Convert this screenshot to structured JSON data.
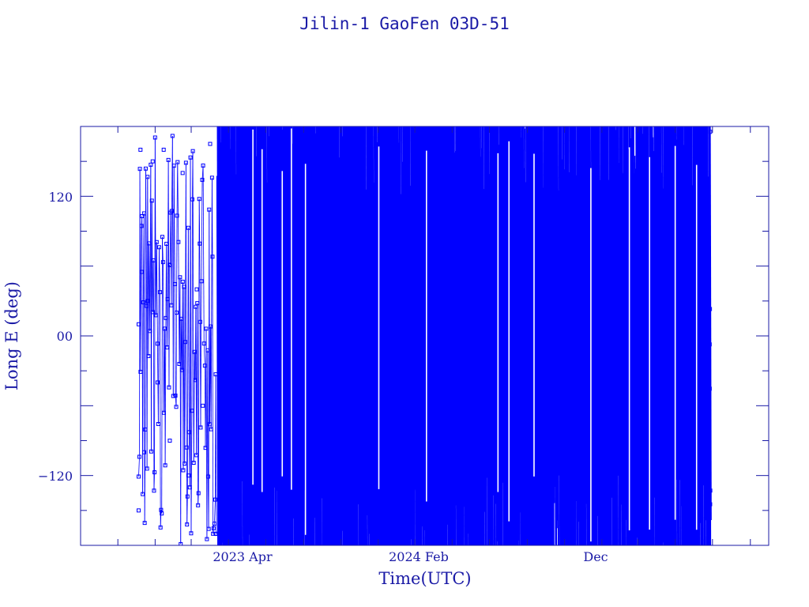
{
  "chart_data": {
    "type": "scatter",
    "title": "Jilin-1 GaoFen 03D-51",
    "xlabel": "Time(UTC)",
    "ylabel": "Long E (deg)",
    "x_ticks": [
      "2023 Apr",
      "2024 Feb",
      "Dec"
    ],
    "y_ticks": [
      "120",
      "00",
      "−120"
    ],
    "ylim": [
      -180,
      180
    ],
    "x_range": [
      "2022-09",
      "2025-10"
    ],
    "grid": false,
    "legend": "none",
    "series": [
      {
        "values_sampled": [
          {
            "x": "2022-12-05",
            "y": 10
          },
          {
            "x": "2022-12-05",
            "y": -150
          },
          {
            "x": "2022-12-08",
            "y": 160
          },
          {
            "x": "2022-12-10",
            "y": 55
          },
          {
            "x": "2022-12-14",
            "y": -100
          },
          {
            "x": "2022-12-20",
            "y": 30
          },
          {
            "x": "2022-12-28",
            "y": 150
          },
          {
            "x": "2023-01-05",
            "y": -40
          },
          {
            "x": "2023-01-15",
            "y": 160
          },
          {
            "x": "2023-01-25",
            "y": -90
          },
          {
            "x": "2023-02-05",
            "y": 20
          },
          {
            "x": "2023-02-15",
            "y": 140
          },
          {
            "x": "2023-02-25",
            "y": -120
          },
          {
            "x": "2023-03-10",
            "y": 40
          },
          {
            "x": "2023-03-20",
            "y": -60
          },
          {
            "x": "2023-04-01",
            "y": 165
          },
          {
            "x": "2023-04-10",
            "y": -170
          }
        ]
      }
    ],
    "colors": {
      "data": "#0000ff",
      "axes": "#1a1aa6",
      "text": "#1a1aa6"
    }
  }
}
